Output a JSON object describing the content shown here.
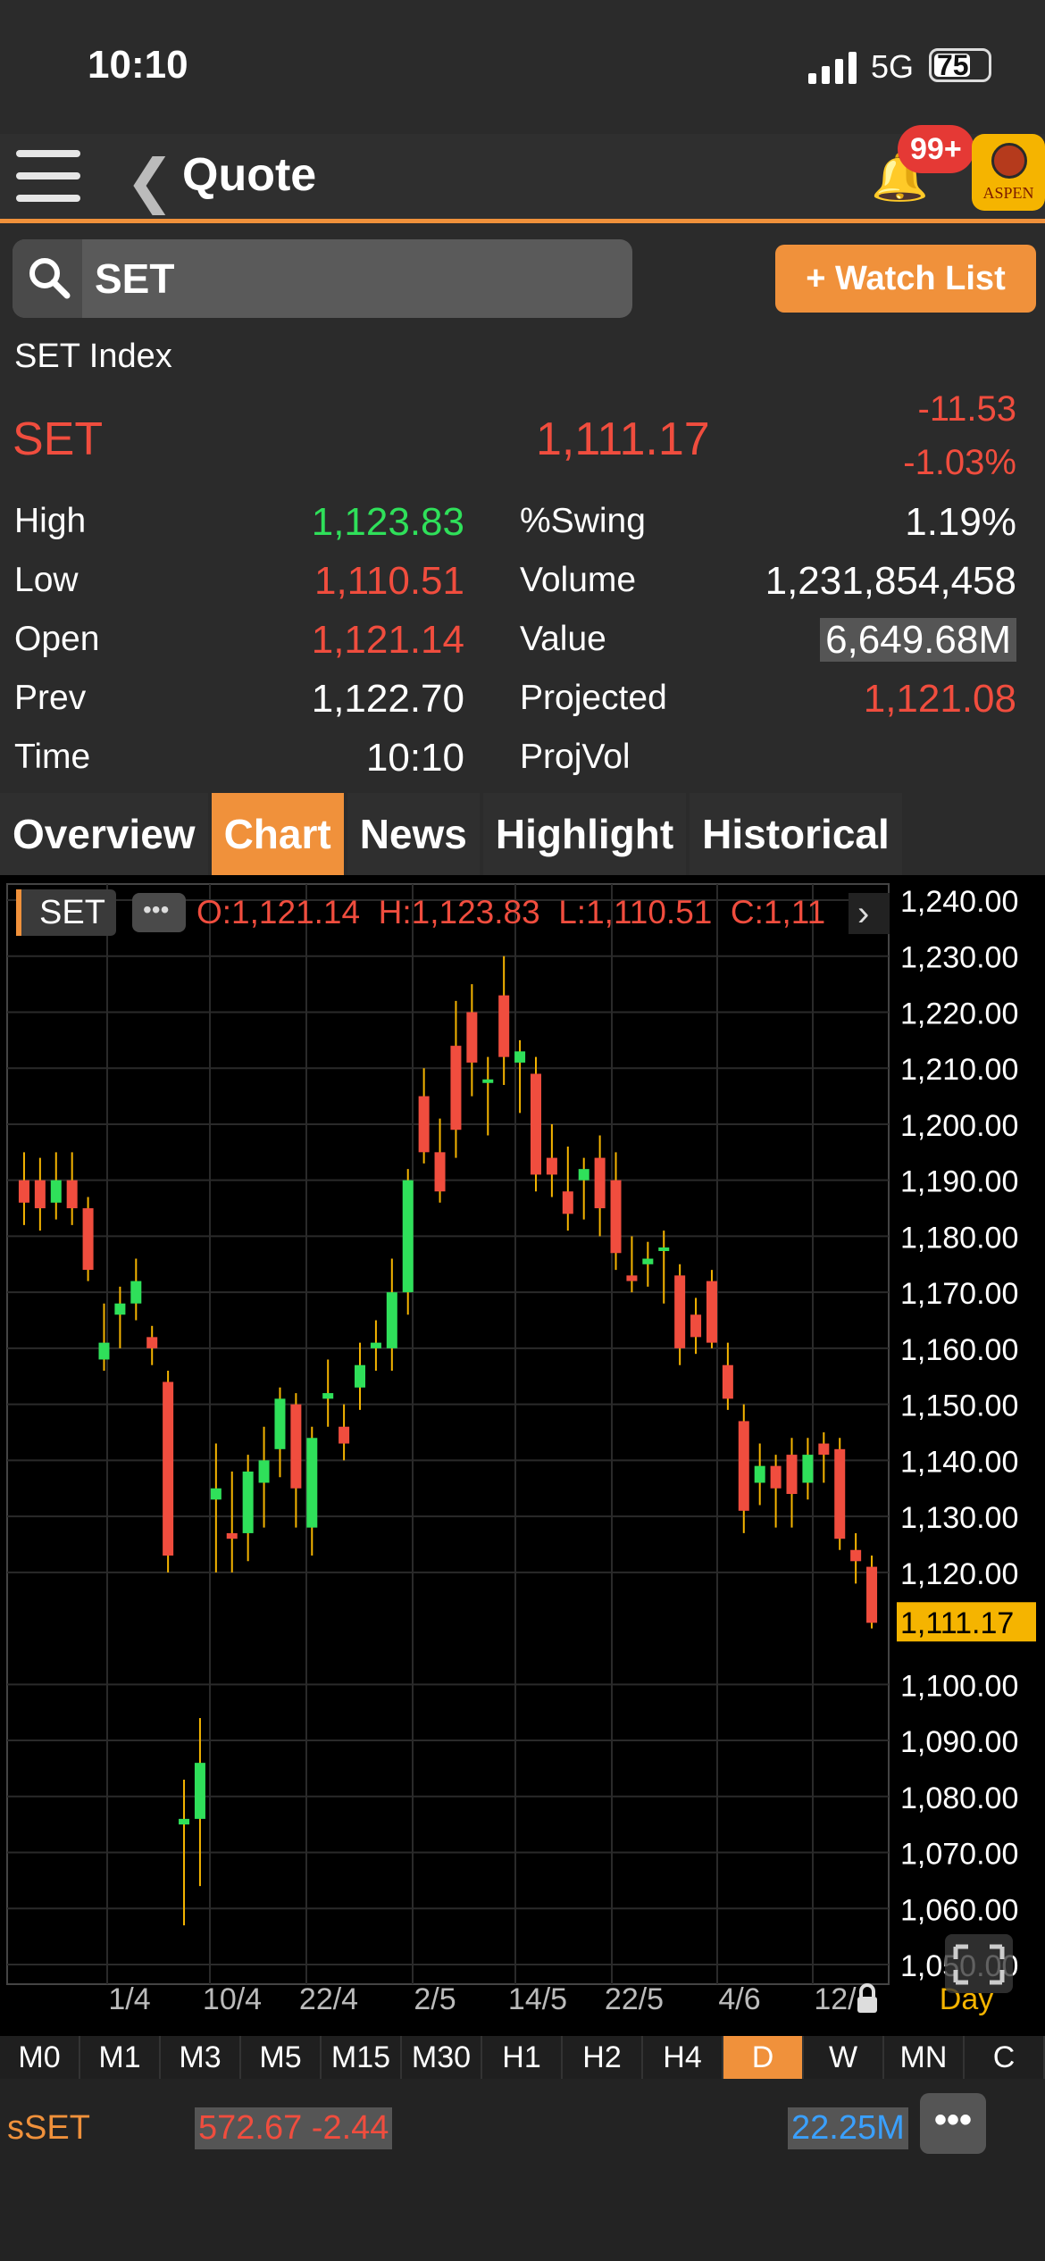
{
  "status_bar": {
    "time": "10:10",
    "network": "5G",
    "battery": "75"
  },
  "nav": {
    "title": "Quote",
    "notification_badge": "99+",
    "logo_text": "ASPEN"
  },
  "search": {
    "value": "SET",
    "watchlist_label": "+ Watch List"
  },
  "quote": {
    "index_name": "SET Index",
    "symbol": "SET",
    "last": "1,111.17",
    "change": "-11.53",
    "change_pct": "-1.03%",
    "left": [
      {
        "label": "High",
        "value": "1,123.83",
        "color": "#2fe05a"
      },
      {
        "label": "Low",
        "value": "1,110.51",
        "color": "#f04d3e"
      },
      {
        "label": "Open",
        "value": "1,121.14",
        "color": "#f04d3e"
      },
      {
        "label": "Prev",
        "value": "1,122.70",
        "color": "#ffffff"
      },
      {
        "label": "Time",
        "value": "10:10",
        "color": "#ffffff"
      }
    ],
    "right": [
      {
        "label": "%Swing",
        "value": "1.19%"
      },
      {
        "label": "Volume",
        "value": "1,231,854,458"
      },
      {
        "label": "Value",
        "value": "6,649.68M"
      },
      {
        "label": "Projected",
        "value": "1,121.08"
      },
      {
        "label": "ProjVol",
        "value": ""
      }
    ]
  },
  "tabs": [
    "Overview",
    "Chart",
    "News",
    "Highlight",
    "Historical"
  ],
  "active_tab": "Chart",
  "chart_header": {
    "symbol": "SET",
    "ohlc": "O:1,121.14  H:1,123.83  L:1,110.51  C:1,11"
  },
  "chart_data": {
    "type": "candlestick",
    "ylim": [
      1050,
      1240
    ],
    "y_ticks": [
      "1,240.00",
      "1,230.00",
      "1,220.00",
      "1,210.00",
      "1,200.00",
      "1,190.00",
      "1,180.00",
      "1,170.00",
      "1,160.00",
      "1,150.00",
      "1,140.00",
      "1,130.00",
      "1,120.00",
      "1,100.00",
      "1,090.00",
      "1,080.00",
      "1,070.00",
      "1,060.00",
      "1,050.00"
    ],
    "current_price_label": "1,111.17",
    "x_tick_labels": [
      "1/4",
      "10/4",
      "22/4",
      "2/5",
      "14/5",
      "22/5",
      "4/6",
      "12/"
    ],
    "period_label": "Day",
    "candles": [
      [
        1190,
        1186,
        1195,
        1182
      ],
      [
        1190,
        1185,
        1194,
        1181
      ],
      [
        1186,
        1190,
        1195,
        1183
      ],
      [
        1190,
        1185,
        1195,
        1182
      ],
      [
        1185,
        1174,
        1187,
        1172
      ],
      [
        1158,
        1161,
        1168,
        1156
      ],
      [
        1166,
        1168,
        1171,
        1160
      ],
      [
        1168,
        1172,
        1176,
        1165
      ],
      [
        1162,
        1160,
        1164,
        1157
      ],
      [
        1154,
        1123,
        1156,
        1120
      ],
      [
        1075,
        1076,
        1083,
        1057
      ],
      [
        1076,
        1086,
        1094,
        1064
      ],
      [
        1133,
        1135,
        1143,
        1120
      ],
      [
        1127,
        1126,
        1138,
        1120
      ],
      [
        1127,
        1138,
        1141,
        1122
      ],
      [
        1136,
        1140,
        1146,
        1128
      ],
      [
        1142,
        1151,
        1153,
        1137
      ],
      [
        1150,
        1135,
        1152,
        1128
      ],
      [
        1128,
        1144,
        1146,
        1123
      ],
      [
        1151,
        1152,
        1158,
        1146
      ],
      [
        1146,
        1143,
        1150,
        1140
      ],
      [
        1153,
        1157,
        1161,
        1149
      ],
      [
        1160,
        1161,
        1165,
        1156
      ],
      [
        1160,
        1170,
        1176,
        1156
      ],
      [
        1170,
        1190,
        1192,
        1166
      ],
      [
        1205,
        1195,
        1210,
        1193
      ],
      [
        1195,
        1188,
        1201,
        1186
      ],
      [
        1214,
        1199,
        1222,
        1194
      ],
      [
        1220,
        1211,
        1225,
        1205
      ],
      [
        1208,
        1208,
        1212,
        1198
      ],
      [
        1223,
        1212,
        1230,
        1207
      ],
      [
        1211,
        1213,
        1215,
        1202
      ],
      [
        1209,
        1191,
        1212,
        1188
      ],
      [
        1194,
        1191,
        1200,
        1187
      ],
      [
        1188,
        1184,
        1196,
        1181
      ],
      [
        1190,
        1192,
        1194,
        1183
      ],
      [
        1194,
        1185,
        1198,
        1180
      ],
      [
        1190,
        1177,
        1195,
        1174
      ],
      [
        1173,
        1172,
        1180,
        1170
      ],
      [
        1175,
        1176,
        1179,
        1171
      ],
      [
        1178,
        1178,
        1181,
        1168
      ],
      [
        1173,
        1160,
        1175,
        1157
      ],
      [
        1166,
        1162,
        1169,
        1159
      ],
      [
        1172,
        1161,
        1174,
        1160
      ],
      [
        1157,
        1151,
        1161,
        1149
      ],
      [
        1147,
        1131,
        1150,
        1127
      ],
      [
        1136,
        1139,
        1143,
        1132
      ],
      [
        1139,
        1135,
        1141,
        1128
      ],
      [
        1141,
        1134,
        1144,
        1128
      ],
      [
        1136,
        1141,
        1144,
        1133
      ],
      [
        1143,
        1141,
        1145,
        1136
      ],
      [
        1142,
        1126,
        1144,
        1124
      ],
      [
        1124,
        1122,
        1127,
        1118
      ],
      [
        1121,
        1111,
        1123,
        1110
      ]
    ]
  },
  "timeframes": [
    "M0",
    "M1",
    "M3",
    "M5",
    "M15",
    "M30",
    "H1",
    "H2",
    "H4",
    "D",
    "W",
    "MN",
    "C"
  ],
  "active_timeframe": "D",
  "footer": {
    "symbol": "sSET",
    "price": "572.67 -2.44",
    "volume": "22.25M"
  },
  "colors": {
    "accent": "#f0913b",
    "up": "#2fe05a",
    "down": "#f04d3e",
    "current": "#f5b400"
  }
}
